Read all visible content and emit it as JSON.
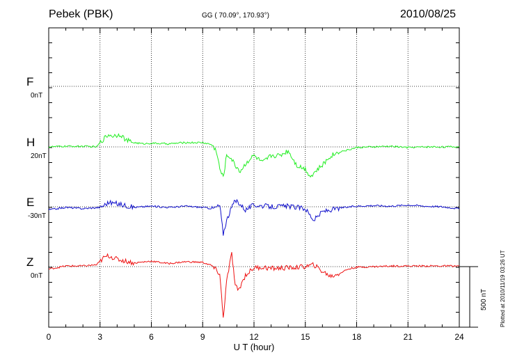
{
  "header": {
    "station": "Pebek (PBK)",
    "coords": "GG ( 70.09°, 170.93°)",
    "date": "2010/08/25"
  },
  "footer": {
    "plotted": "Plotted at 2010/11/19 03:26 UT"
  },
  "colors": {
    "F": "#ffaa00",
    "H": "#22ee22",
    "E": "#1010cc",
    "Z": "#ee1111"
  },
  "chart_data": {
    "type": "line",
    "title": "Pebek (PBK)",
    "xlabel": "U T (hour)",
    "ylabel": "",
    "xlim": [
      0,
      24
    ],
    "xticks": [
      "0",
      "3",
      "6",
      "9",
      "12",
      "15",
      "18",
      "21",
      "24"
    ],
    "scale_bar": "500 nT",
    "y_unit": "nT",
    "series": [
      {
        "name": "F",
        "offset_label": "0nT",
        "x": [],
        "y": []
      },
      {
        "name": "H",
        "offset_label": "20nT",
        "x": [
          0,
          1,
          2,
          2.8,
          3.2,
          3.5,
          3.8,
          4.2,
          4.5,
          5,
          5.5,
          6,
          7,
          8,
          9,
          9.5,
          9.8,
          10,
          10.2,
          10.4,
          10.6,
          10.9,
          11.2,
          11.6,
          12,
          12.5,
          13,
          13.5,
          14,
          14.5,
          15,
          15.3,
          15.6,
          16,
          16.5,
          17,
          17.5,
          18,
          19,
          20,
          21,
          22,
          23,
          24
        ],
        "y": [
          0,
          5,
          5,
          0,
          65,
          100,
          90,
          105,
          55,
          35,
          25,
          30,
          25,
          35,
          35,
          20,
          -30,
          -180,
          -250,
          -70,
          -80,
          -150,
          -200,
          -120,
          -70,
          -130,
          -70,
          -70,
          -30,
          -150,
          -180,
          -240,
          -200,
          -150,
          -70,
          -40,
          -25,
          -5,
          0,
          5,
          -5,
          0,
          0,
          0
        ]
      },
      {
        "name": "E",
        "offset_label": "-30nT",
        "x": [
          0,
          1,
          2,
          3,
          3.5,
          4,
          5,
          6,
          7,
          8,
          9,
          9.6,
          10,
          10.2,
          10.4,
          10.8,
          11,
          11.5,
          12,
          13,
          14,
          15,
          15.5,
          16,
          17,
          18,
          19,
          20,
          21,
          22,
          23,
          24
        ],
        "y": [
          -25,
          -5,
          -15,
          -5,
          35,
          25,
          -5,
          5,
          -5,
          5,
          -5,
          -15,
          10,
          -220,
          -110,
          30,
          50,
          -25,
          15,
          0,
          5,
          -15,
          -110,
          -40,
          -10,
          5,
          10,
          5,
          15,
          5,
          0,
          -15
        ]
      },
      {
        "name": "Z",
        "offset_label": "0nT",
        "x": [
          0,
          1,
          2,
          2.8,
          3.2,
          3.5,
          4,
          5,
          6,
          7,
          8,
          9,
          9.5,
          10,
          10.2,
          10.4,
          10.7,
          10.9,
          11.1,
          11.5,
          12,
          12.5,
          13,
          14,
          15,
          15.5,
          16,
          16.5,
          17,
          17.5,
          18,
          20,
          22,
          24
        ],
        "y": [
          -20,
          5,
          5,
          15,
          70,
          90,
          60,
          30,
          45,
          25,
          40,
          35,
          10,
          -60,
          -420,
          -120,
          110,
          -160,
          -190,
          -70,
          -10,
          -5,
          -15,
          -10,
          0,
          15,
          -40,
          -80,
          -55,
          -20,
          -5,
          5,
          5,
          5
        ]
      }
    ]
  }
}
